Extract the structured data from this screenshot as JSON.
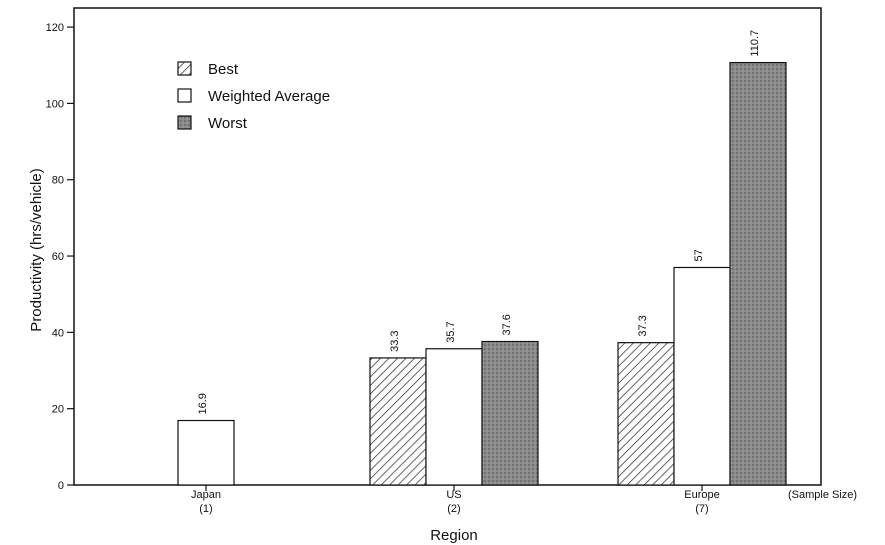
{
  "chart_data": {
    "type": "bar",
    "title": "",
    "xlabel": "Region",
    "ylabel": "Productivity (hrs/vehicle)",
    "ylim": [
      0,
      125
    ],
    "yticks": [
      0,
      20,
      40,
      60,
      80,
      100,
      120
    ],
    "categories": [
      {
        "name": "Japan",
        "sample": "(1)"
      },
      {
        "name": "US",
        "sample": "(2)"
      },
      {
        "name": "Europe",
        "sample": "(7)"
      }
    ],
    "sample_size_label": "(Sample Size)",
    "series": [
      {
        "name": "Best",
        "pattern": "hatched",
        "values": [
          null,
          33.3,
          37.3
        ],
        "labels": [
          "",
          "33.3",
          "37.3"
        ]
      },
      {
        "name": "Weighted Average",
        "pattern": "white",
        "values": [
          16.9,
          35.7,
          57
        ],
        "labels": [
          "16.9",
          "35.7",
          "57"
        ]
      },
      {
        "name": "Worst",
        "pattern": "dotted-gray",
        "values": [
          null,
          37.6,
          110.7
        ],
        "labels": [
          "",
          "37.6",
          "110.7"
        ]
      }
    ],
    "grid": false,
    "legend_position": "top-left",
    "colors": {
      "outline": "#111111",
      "hatch": "#333333",
      "worst": "#7a7a7a",
      "background": "#ffffff"
    }
  }
}
